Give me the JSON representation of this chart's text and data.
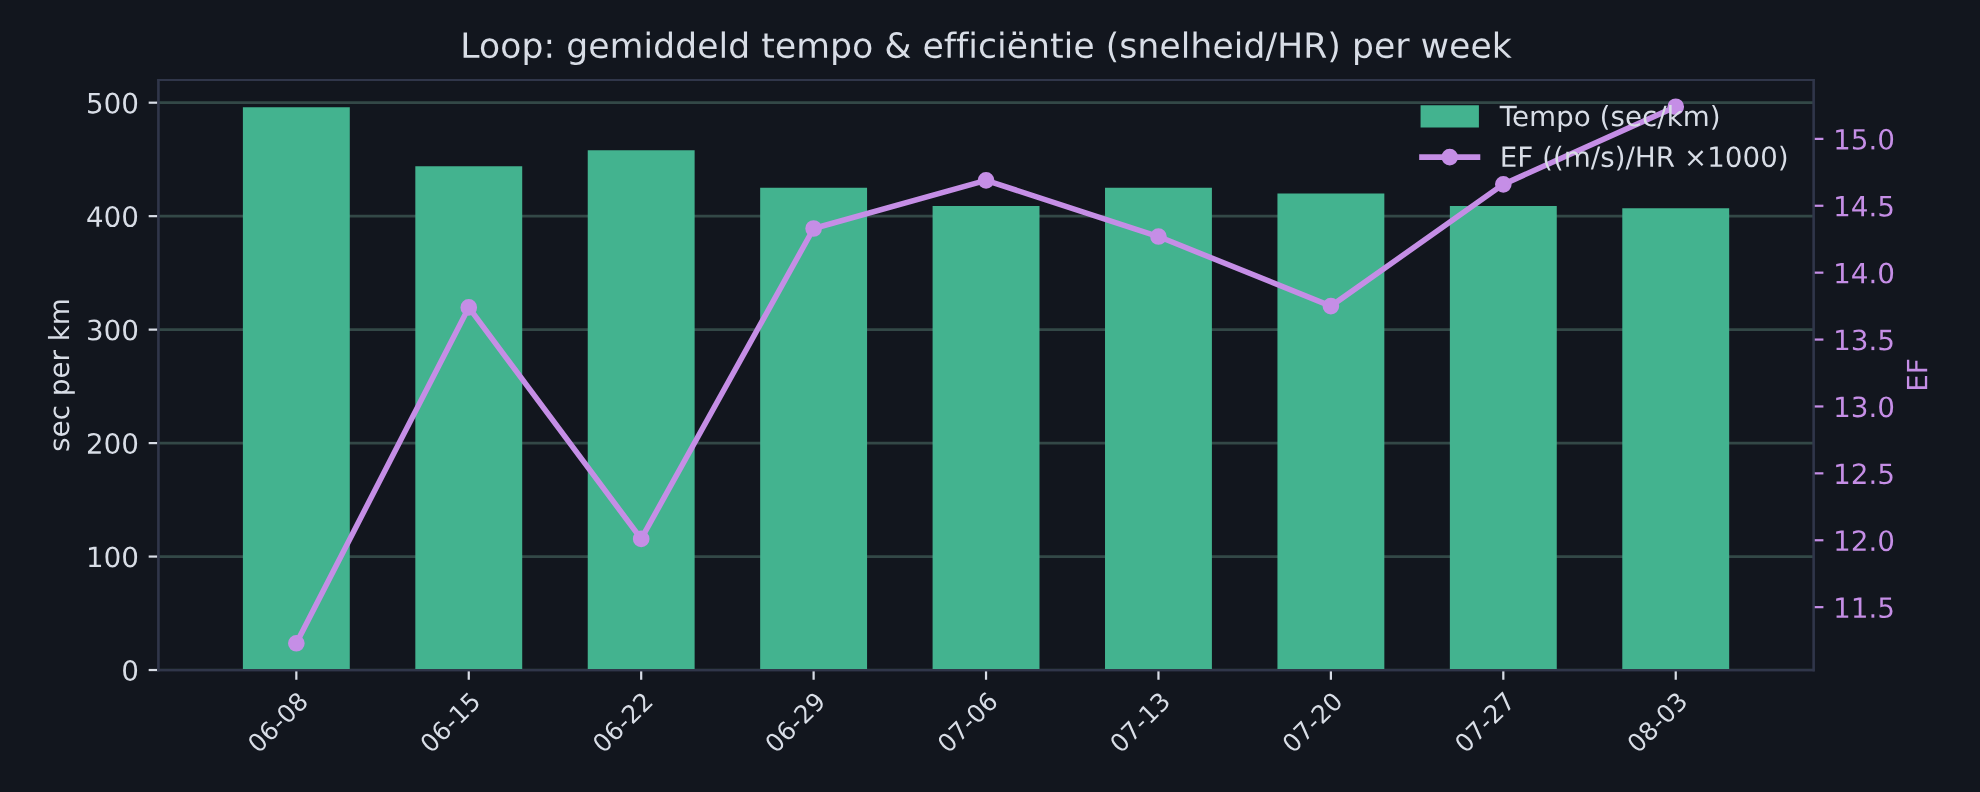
{
  "chart_data": {
    "type": "bar",
    "title": "Loop: gemiddeld tempo & efficiëntie (snelheid/HR) per week",
    "categories": [
      "06-08",
      "06-15",
      "06-22",
      "06-29",
      "07-06",
      "07-13",
      "07-20",
      "07-27",
      "08-03"
    ],
    "series": [
      {
        "name": "Tempo (sec/km)",
        "color": "#43b38f",
        "values": [
          496,
          444,
          458,
          425,
          409,
          425,
          420,
          409,
          407
        ]
      },
      {
        "name": "EF ((m/s)/HR ×1000)",
        "type": "line",
        "axis": "y2",
        "color": "#c58ee6",
        "marker": "circle",
        "values": [
          11.23,
          13.74,
          12.01,
          14.33,
          14.69,
          14.27,
          13.75,
          14.66,
          15.24
        ]
      }
    ],
    "ylabel": "sec per km",
    "y2label": "EF",
    "ylim": [
      0,
      520
    ],
    "yticks": [
      0,
      100,
      200,
      300,
      400,
      500
    ],
    "y2lim": [
      11.03,
      15.44
    ],
    "y2ticks": [
      11.5,
      {
        "value": 12,
        "label": "12.0"
      },
      12.5,
      {
        "value": 13,
        "label": "13.0"
      },
      13.5,
      {
        "value": 14,
        "label": "14.0"
      },
      14.5,
      {
        "value": 15,
        "label": "15.0"
      }
    ],
    "grid": "y",
    "legend": "top right"
  }
}
